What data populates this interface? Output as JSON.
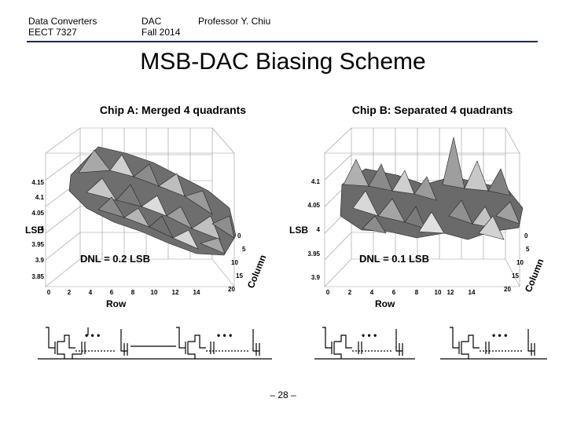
{
  "header": {
    "course": "Data Converters",
    "course_code": "EECT 7327",
    "topic": "DAC",
    "term": "Fall 2014",
    "author": "Professor Y. Chiu"
  },
  "title": "MSB-DAC Biasing Scheme",
  "plot_a": {
    "title": "Chip A: Merged 4 quadrants",
    "zlabel": "LSB",
    "xlabel": "Row",
    "ylabel": "Column",
    "dnl": "DNL = 0.2 LSB",
    "zticks": [
      "4.15",
      "4.1",
      "4.05",
      "4",
      "3.95",
      "3.9",
      "3.85"
    ],
    "xticks": [
      "0",
      "2",
      "4",
      "6",
      "8",
      "10",
      "12",
      "14"
    ],
    "yticks": [
      "0",
      "5",
      "10",
      "15",
      "20"
    ]
  },
  "plot_b": {
    "title": "Chip B: Separated 4 quadrants",
    "zlabel": "LSB",
    "xlabel": "Row",
    "ylabel": "Column",
    "dnl": "DNL = 0.1 LSB",
    "zticks": [
      "4.1",
      "4.05",
      "4",
      "3.95",
      "3.9"
    ],
    "xticks": [
      "0",
      "2",
      "4",
      "6",
      "8",
      "10",
      "12",
      "14"
    ],
    "yticks": [
      "0",
      "5",
      "10",
      "15",
      "20"
    ]
  },
  "ellipsis": "• • •",
  "page_number": "– 28 –"
}
